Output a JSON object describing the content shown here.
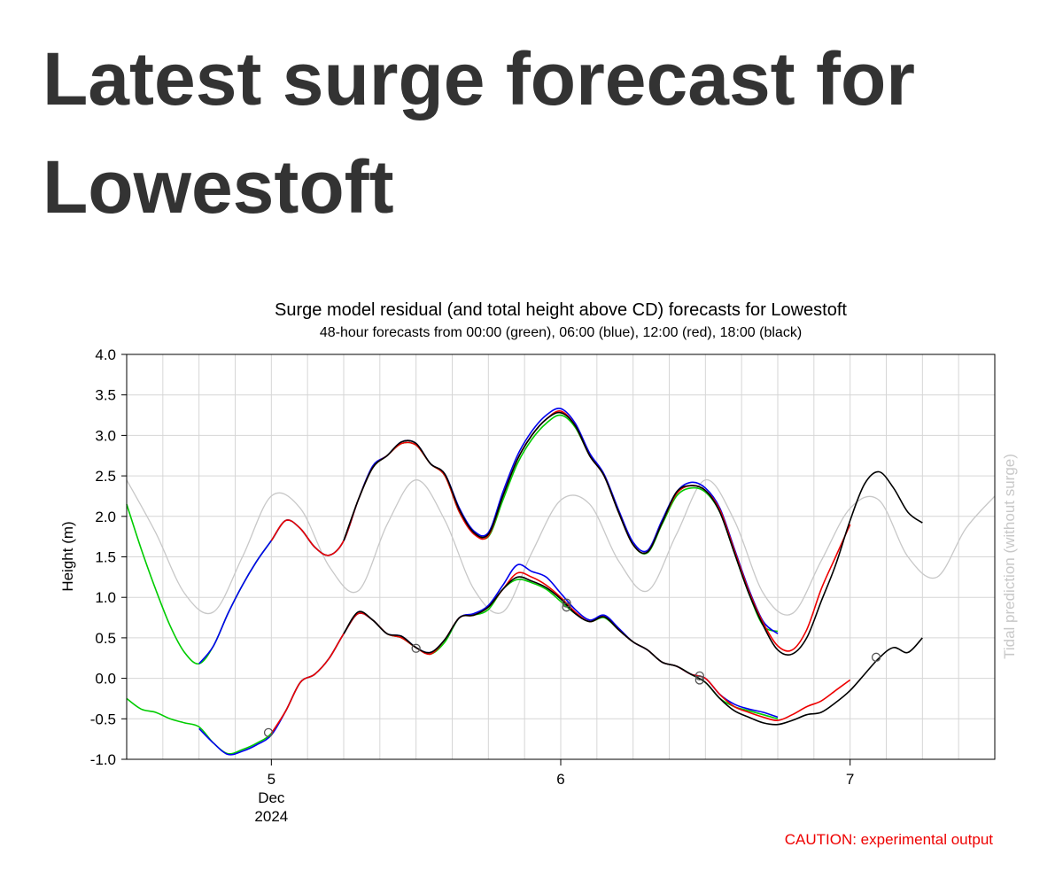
{
  "page": {
    "heading": "Latest surge forecast for Lowestoft"
  },
  "chart_data": {
    "type": "line",
    "title": "Surge model residual (and total height above CD) forecasts for Lowestoft",
    "subtitle": "48-hour forecasts from 00:00 (green), 06:00 (blue), 12:00 (red), 18:00 (black)",
    "ylabel": "Height (m)",
    "y2label": "Tidal prediction (without surge)",
    "ylim": [
      -1.0,
      4.0
    ],
    "xlim": [
      4.5,
      7.5
    ],
    "grid": true,
    "x_unit": "day of December 2024 (fractional)",
    "y_ticks": [
      "-1.0",
      "-0.5",
      "0.0",
      "0.5",
      "1.0",
      "1.5",
      "2.0",
      "2.5",
      "3.0",
      "3.5",
      "4.0"
    ],
    "x_ticks": [
      {
        "x": 5,
        "lines": [
          "5",
          "Dec",
          "2024"
        ]
      },
      {
        "x": 6,
        "lines": [
          "6"
        ]
      },
      {
        "x": 7,
        "lines": [
          "7"
        ]
      }
    ],
    "annotation": "CAUTION: experimental output",
    "colors": {
      "green": "#00cc00",
      "blue": "#0000ee",
      "red": "#ee0000",
      "black": "#000000",
      "tide": "#c8c8c8",
      "caution": "#ee0000"
    },
    "tide": {
      "x": [
        4.5,
        4.6,
        4.7,
        4.8,
        4.9,
        5.0,
        5.1,
        5.2,
        5.3,
        5.4,
        5.5,
        5.6,
        5.7,
        5.8,
        5.9,
        6.0,
        6.1,
        6.2,
        6.3,
        6.4,
        6.5,
        6.6,
        6.7,
        6.8,
        6.9,
        7.0,
        7.1,
        7.2,
        7.3,
        7.4,
        7.5
      ],
      "y": [
        2.45,
        1.8,
        1.05,
        0.82,
        1.5,
        2.25,
        2.1,
        1.38,
        1.08,
        1.9,
        2.45,
        1.95,
        1.1,
        0.82,
        1.55,
        2.2,
        2.15,
        1.45,
        1.08,
        1.78,
        2.45,
        1.95,
        1.05,
        0.8,
        1.45,
        2.1,
        2.2,
        1.5,
        1.25,
        1.85,
        2.25
      ]
    },
    "total_series": [
      {
        "color": "green",
        "x": [
          4.5,
          4.55,
          4.6,
          4.65,
          4.7,
          4.75,
          4.8,
          4.85,
          4.9,
          4.95,
          5.0,
          5.05,
          5.1,
          5.15,
          5.2,
          5.25,
          5.3,
          5.35,
          5.4,
          5.45,
          5.5,
          5.55,
          5.6,
          5.65,
          5.7,
          5.75,
          5.8,
          5.85,
          5.9,
          5.95,
          6.0,
          6.05,
          6.1,
          6.15,
          6.2,
          6.25,
          6.3,
          6.35,
          6.4,
          6.45,
          6.5,
          6.55,
          6.6,
          6.65,
          6.7,
          6.75
        ],
        "y": [
          2.15,
          1.6,
          1.1,
          0.65,
          0.32,
          0.18,
          0.4,
          0.8,
          1.15,
          1.45,
          1.7,
          1.95,
          1.85,
          1.62,
          1.52,
          1.7,
          2.2,
          2.6,
          2.75,
          2.9,
          2.88,
          2.65,
          2.5,
          2.05,
          1.8,
          1.75,
          2.2,
          2.65,
          2.95,
          3.15,
          3.25,
          3.1,
          2.75,
          2.5,
          2.05,
          1.65,
          1.55,
          1.9,
          2.25,
          2.35,
          2.3,
          2.05,
          1.55,
          1.05,
          0.65,
          0.58
        ]
      },
      {
        "color": "blue",
        "x": [
          4.75,
          4.8,
          4.85,
          4.9,
          4.95,
          5.0,
          5.05,
          5.1,
          5.15,
          5.2,
          5.25,
          5.3,
          5.35,
          5.4,
          5.45,
          5.5,
          5.55,
          5.6,
          5.65,
          5.7,
          5.75,
          5.8,
          5.85,
          5.9,
          5.95,
          6.0,
          6.05,
          6.1,
          6.15,
          6.2,
          6.25,
          6.3,
          6.35,
          6.4,
          6.45,
          6.5,
          6.55,
          6.6,
          6.65,
          6.7,
          6.75
        ],
        "y": [
          0.18,
          0.4,
          0.8,
          1.15,
          1.45,
          1.7,
          1.95,
          1.85,
          1.62,
          1.52,
          1.7,
          2.2,
          2.62,
          2.75,
          2.92,
          2.9,
          2.65,
          2.52,
          2.1,
          1.82,
          1.8,
          2.3,
          2.75,
          3.05,
          3.25,
          3.33,
          3.15,
          2.78,
          2.52,
          2.08,
          1.68,
          1.58,
          1.95,
          2.3,
          2.42,
          2.35,
          2.1,
          1.6,
          1.1,
          0.7,
          0.55
        ]
      },
      {
        "color": "red",
        "x": [
          5.0,
          5.05,
          5.1,
          5.15,
          5.2,
          5.25,
          5.3,
          5.35,
          5.4,
          5.45,
          5.5,
          5.55,
          5.6,
          5.65,
          5.7,
          5.75,
          5.8,
          5.85,
          5.9,
          5.95,
          6.0,
          6.05,
          6.1,
          6.15,
          6.2,
          6.25,
          6.3,
          6.35,
          6.4,
          6.45,
          6.5,
          6.55,
          6.6,
          6.65,
          6.7,
          6.75,
          6.8,
          6.85,
          6.9,
          6.95,
          7.0
        ],
        "y": [
          1.7,
          1.95,
          1.85,
          1.62,
          1.52,
          1.7,
          2.2,
          2.6,
          2.75,
          2.9,
          2.88,
          2.65,
          2.5,
          2.05,
          1.78,
          1.76,
          2.25,
          2.7,
          3.0,
          3.2,
          3.3,
          3.12,
          2.75,
          2.5,
          2.05,
          1.65,
          1.56,
          1.92,
          2.28,
          2.38,
          2.32,
          2.08,
          1.58,
          1.08,
          0.68,
          0.4,
          0.35,
          0.6,
          1.1,
          1.5,
          1.9
        ]
      },
      {
        "color": "black",
        "x": [
          5.25,
          5.3,
          5.35,
          5.4,
          5.45,
          5.5,
          5.55,
          5.6,
          5.65,
          5.7,
          5.75,
          5.8,
          5.85,
          5.9,
          5.95,
          6.0,
          6.05,
          6.1,
          6.15,
          6.2,
          6.25,
          6.3,
          6.35,
          6.4,
          6.45,
          6.5,
          6.55,
          6.6,
          6.65,
          6.7,
          6.75,
          6.8,
          6.85,
          6.9,
          6.95,
          7.0,
          7.05,
          7.1,
          7.15,
          7.2,
          7.25
        ],
        "y": [
          1.7,
          2.2,
          2.6,
          2.75,
          2.92,
          2.9,
          2.65,
          2.52,
          2.08,
          1.8,
          1.78,
          2.25,
          2.7,
          3.0,
          3.2,
          3.28,
          3.12,
          2.75,
          2.5,
          2.05,
          1.65,
          1.56,
          1.92,
          2.3,
          2.38,
          2.32,
          2.05,
          1.55,
          1.05,
          0.65,
          0.35,
          0.3,
          0.5,
          0.95,
          1.4,
          1.95,
          2.4,
          2.55,
          2.35,
          2.05,
          1.92
        ]
      }
    ],
    "residual_series": [
      {
        "color": "green",
        "x": [
          4.5,
          4.55,
          4.6,
          4.65,
          4.7,
          4.75,
          4.8,
          4.85,
          4.9,
          4.95,
          5.0,
          5.05,
          5.1,
          5.15,
          5.2,
          5.25,
          5.3,
          5.35,
          5.4,
          5.45,
          5.5,
          5.55,
          5.6,
          5.65,
          5.7,
          5.75,
          5.8,
          5.85,
          5.9,
          5.95,
          6.0,
          6.05,
          6.1,
          6.15,
          6.2,
          6.25,
          6.3,
          6.35,
          6.4,
          6.45,
          6.5,
          6.55,
          6.6,
          6.65,
          6.7,
          6.75
        ],
        "y": [
          -0.25,
          -0.38,
          -0.42,
          -0.5,
          -0.55,
          -0.6,
          -0.8,
          -0.93,
          -0.88,
          -0.8,
          -0.68,
          -0.4,
          -0.05,
          0.05,
          0.25,
          0.55,
          0.8,
          0.72,
          0.55,
          0.5,
          0.38,
          0.3,
          0.45,
          0.75,
          0.78,
          0.85,
          1.1,
          1.22,
          1.18,
          1.1,
          0.95,
          0.8,
          0.7,
          0.75,
          0.6,
          0.45,
          0.35,
          0.2,
          0.15,
          0.05,
          -0.05,
          -0.25,
          -0.35,
          -0.4,
          -0.45,
          -0.5
        ]
      },
      {
        "color": "blue",
        "x": [
          4.75,
          4.8,
          4.85,
          4.9,
          4.95,
          5.0,
          5.05,
          5.1,
          5.15,
          5.2,
          5.25,
          5.3,
          5.35,
          5.4,
          5.45,
          5.5,
          5.55,
          5.6,
          5.65,
          5.7,
          5.75,
          5.8,
          5.85,
          5.9,
          5.95,
          6.0,
          6.05,
          6.1,
          6.15,
          6.2,
          6.25,
          6.3,
          6.35,
          6.4,
          6.45,
          6.5,
          6.55,
          6.6,
          6.65,
          6.7,
          6.75
        ],
        "y": [
          -0.62,
          -0.8,
          -0.94,
          -0.9,
          -0.82,
          -0.7,
          -0.4,
          -0.05,
          0.05,
          0.25,
          0.55,
          0.8,
          0.72,
          0.55,
          0.52,
          0.38,
          0.32,
          0.48,
          0.75,
          0.8,
          0.9,
          1.15,
          1.4,
          1.32,
          1.25,
          1.05,
          0.85,
          0.72,
          0.78,
          0.62,
          0.45,
          0.35,
          0.2,
          0.15,
          0.05,
          0.0,
          -0.2,
          -0.32,
          -0.38,
          -0.42,
          -0.48
        ]
      },
      {
        "color": "red",
        "x": [
          5.0,
          5.05,
          5.1,
          5.15,
          5.2,
          5.25,
          5.3,
          5.35,
          5.4,
          5.45,
          5.5,
          5.55,
          5.6,
          5.65,
          5.7,
          5.75,
          5.8,
          5.85,
          5.9,
          5.95,
          6.0,
          6.05,
          6.1,
          6.15,
          6.2,
          6.25,
          6.3,
          6.35,
          6.4,
          6.45,
          6.5,
          6.55,
          6.6,
          6.65,
          6.7,
          6.75,
          6.8,
          6.85,
          6.9,
          6.95,
          7.0
        ],
        "y": [
          -0.68,
          -0.4,
          -0.05,
          0.05,
          0.25,
          0.55,
          0.8,
          0.72,
          0.55,
          0.5,
          0.38,
          0.3,
          0.48,
          0.75,
          0.78,
          0.88,
          1.1,
          1.3,
          1.25,
          1.15,
          1.0,
          0.82,
          0.7,
          0.76,
          0.6,
          0.45,
          0.35,
          0.2,
          0.15,
          0.05,
          0.0,
          -0.2,
          -0.35,
          -0.42,
          -0.48,
          -0.52,
          -0.45,
          -0.35,
          -0.28,
          -0.15,
          -0.02
        ]
      },
      {
        "color": "black",
        "x": [
          5.25,
          5.3,
          5.35,
          5.4,
          5.45,
          5.5,
          5.55,
          5.6,
          5.65,
          5.7,
          5.75,
          5.8,
          5.85,
          5.9,
          5.95,
          6.0,
          6.05,
          6.1,
          6.15,
          6.2,
          6.25,
          6.3,
          6.35,
          6.4,
          6.45,
          6.5,
          6.55,
          6.6,
          6.65,
          6.7,
          6.75,
          6.8,
          6.85,
          6.9,
          6.95,
          7.0,
          7.05,
          7.1,
          7.15,
          7.2,
          7.25
        ],
        "y": [
          0.55,
          0.82,
          0.72,
          0.55,
          0.52,
          0.38,
          0.32,
          0.48,
          0.75,
          0.78,
          0.88,
          1.1,
          1.25,
          1.2,
          1.12,
          0.98,
          0.8,
          0.7,
          0.76,
          0.6,
          0.45,
          0.35,
          0.2,
          0.15,
          0.05,
          -0.05,
          -0.25,
          -0.4,
          -0.48,
          -0.55,
          -0.57,
          -0.52,
          -0.45,
          -0.42,
          -0.3,
          -0.15,
          0.05,
          0.25,
          0.38,
          0.32,
          0.5
        ]
      }
    ],
    "observations": [
      {
        "x": 4.99,
        "y": -0.67
      },
      {
        "x": 5.5,
        "y": 0.37
      },
      {
        "x": 6.02,
        "y": 0.93
      },
      {
        "x": 6.02,
        "y": 0.88
      },
      {
        "x": 6.48,
        "y": 0.03
      },
      {
        "x": 6.48,
        "y": -0.02
      },
      {
        "x": 7.09,
        "y": 0.26
      }
    ]
  }
}
